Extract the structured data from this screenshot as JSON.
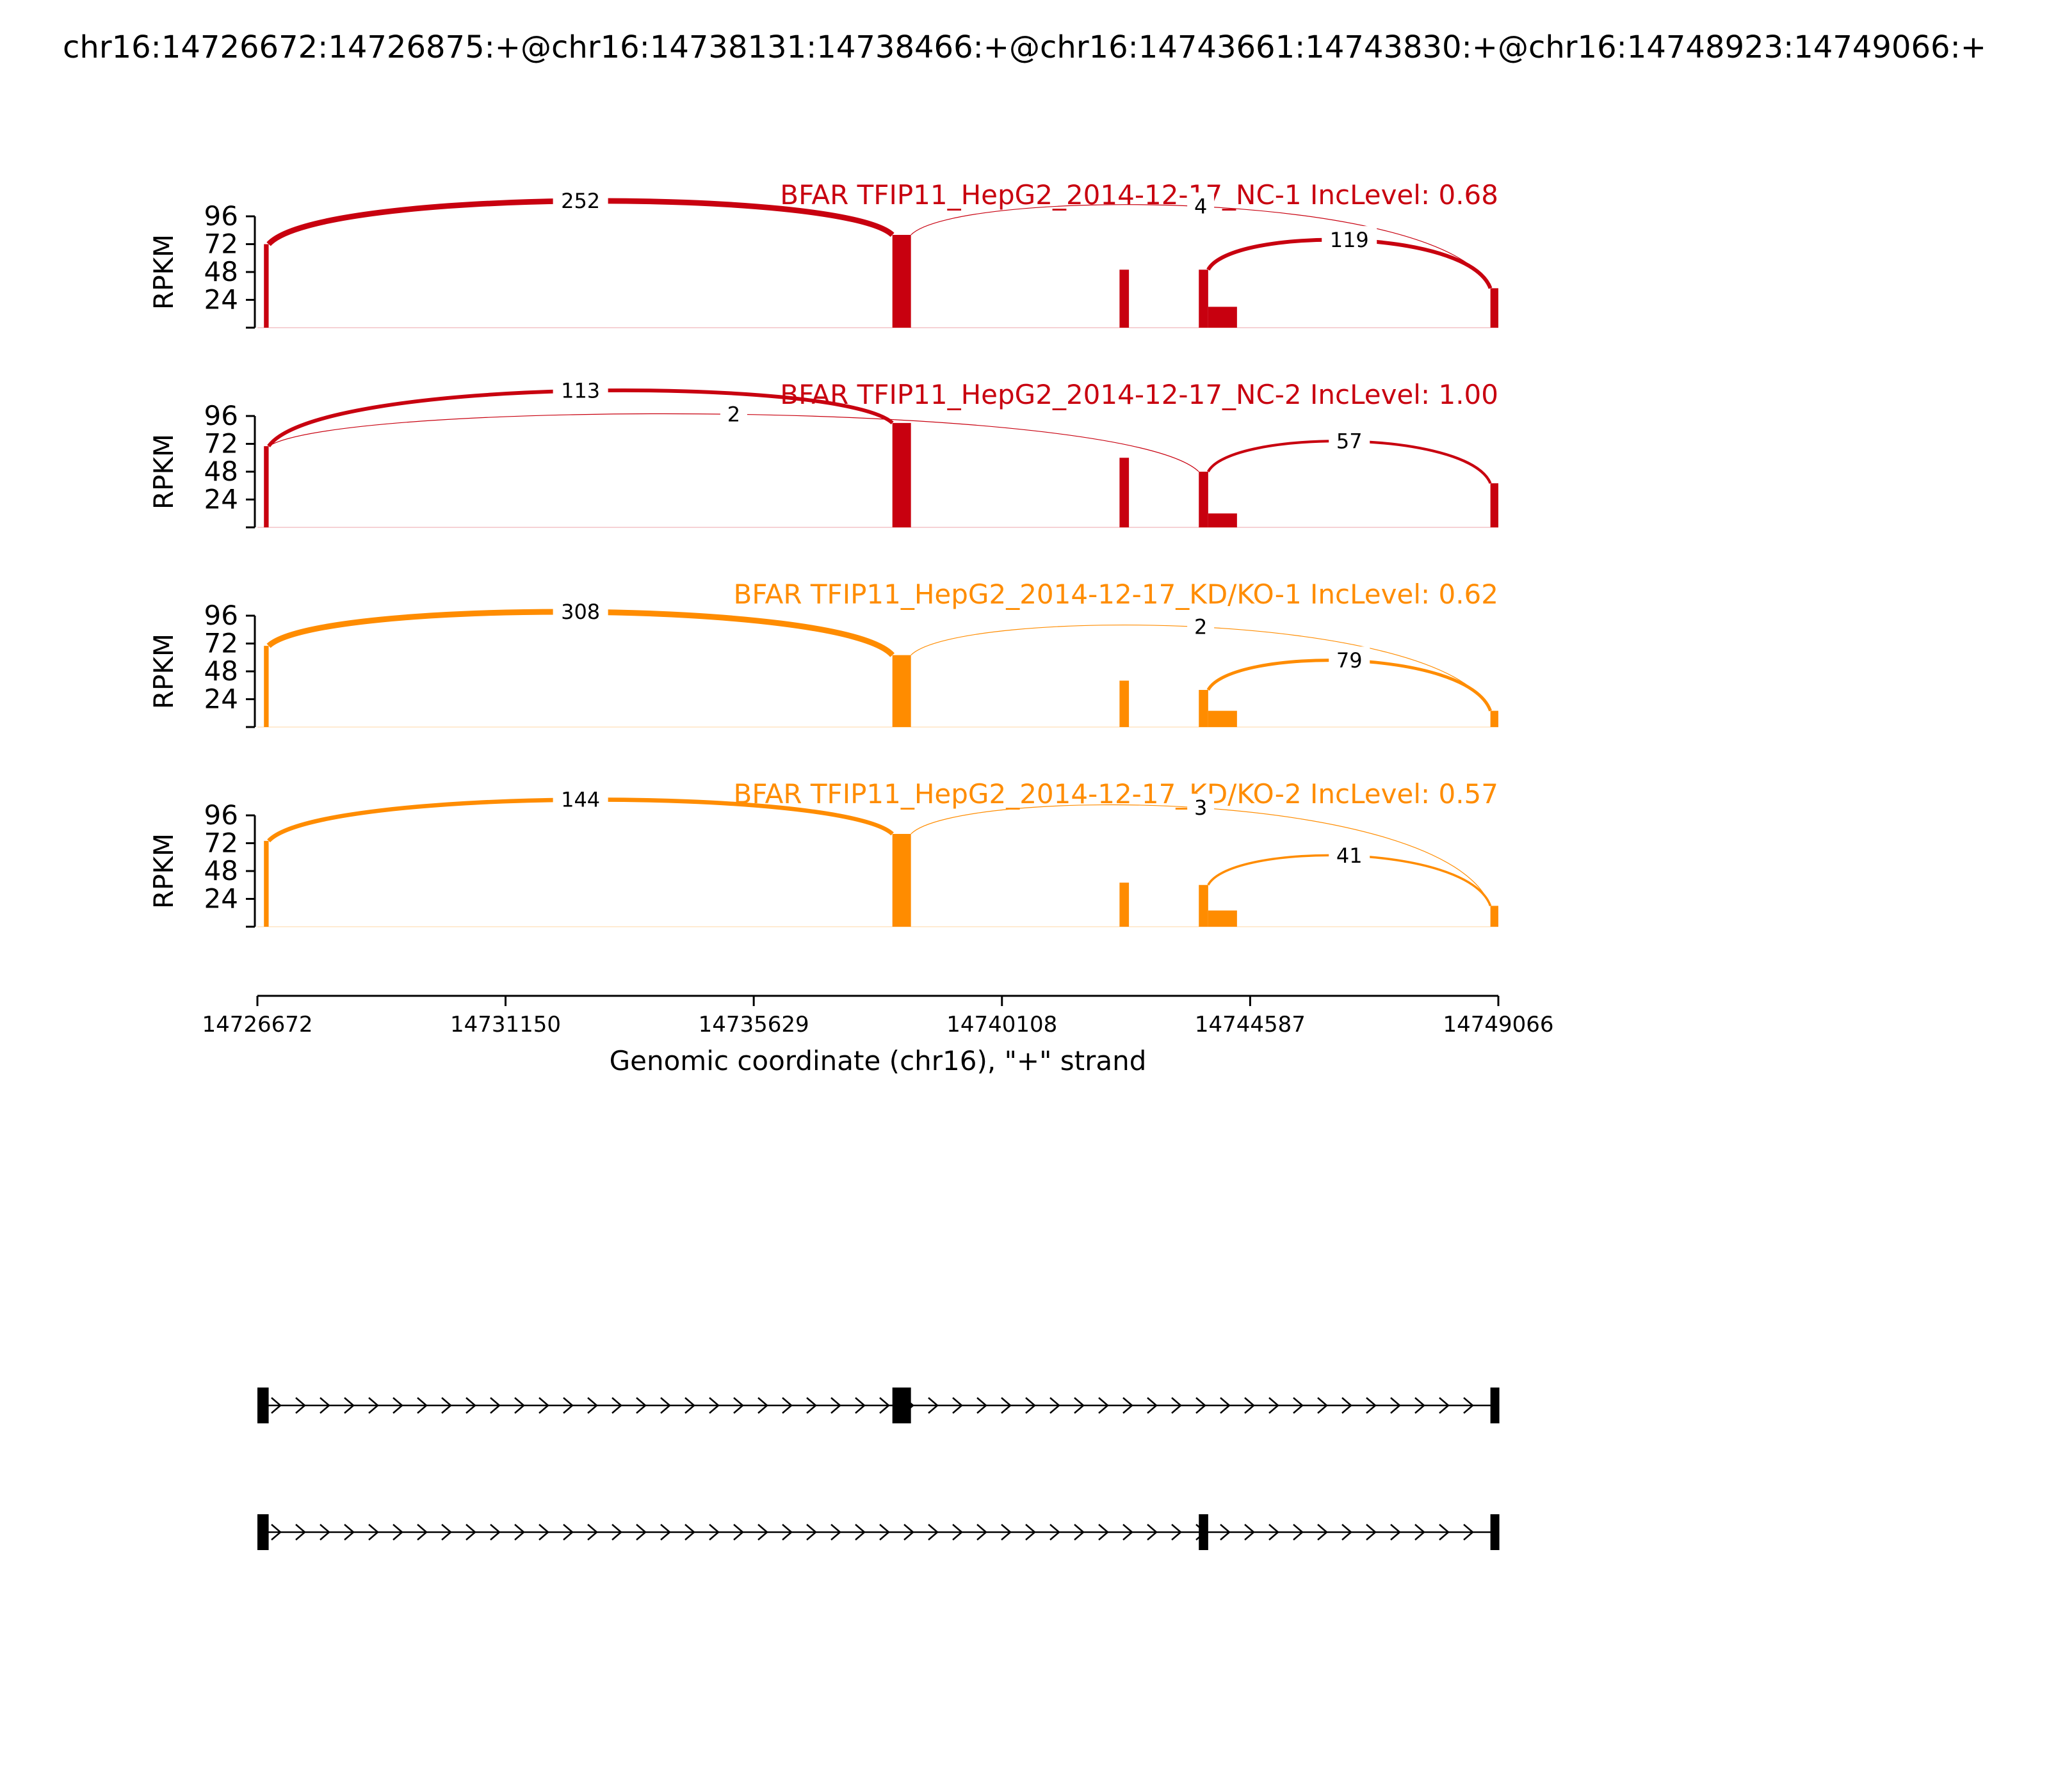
{
  "page": {
    "title": "chr16:14726672:14726875:+@chr16:14738131:14738466:+@chr16:14743661:14743830:+@chr16:14748923:14749066:+"
  },
  "chart_data": {
    "type": "sashimi",
    "xlabel": "Genomic coordinate (chr16), \"+\" strand",
    "ylabel": "RPKM",
    "xlim": [
      14726672,
      14749066
    ],
    "xticks": [
      "14726672",
      "14731150",
      "14735629",
      "14740108",
      "14744587",
      "14749066"
    ],
    "ylim": [
      0,
      96
    ],
    "yticks": [
      "24",
      "48",
      "72",
      "96"
    ],
    "exons": [
      {
        "start": 14726672,
        "end": 14726875
      },
      {
        "start": 14738131,
        "end": 14738466
      },
      {
        "start": 14743661,
        "end": 14743830
      },
      {
        "start": 14748923,
        "end": 14749066
      }
    ],
    "tracks": [
      {
        "title": "BFAR TFIP11_HepG2_2014-12-17_NC-1 IncLevel: 0.68",
        "color": "#c8000f",
        "coverage": [
          {
            "start": 14726790,
            "end": 14726875,
            "height": 72
          },
          {
            "start": 14738131,
            "end": 14738466,
            "height": 80
          },
          {
            "start": 14742230,
            "end": 14742400,
            "height": 50
          },
          {
            "start": 14743661,
            "end": 14743830,
            "height": 50
          },
          {
            "start": 14743830,
            "end": 14744350,
            "height": 18
          },
          {
            "start": 14748923,
            "end": 14749066,
            "height": 34
          }
        ],
        "junctions": [
          {
            "from": 14726875,
            "to": 14738131,
            "count": "252",
            "above": true
          },
          {
            "from": 14738466,
            "to": 14748923,
            "count": "4",
            "above": true
          },
          {
            "from": 14743830,
            "to": 14748923,
            "count": "119",
            "above": true
          }
        ]
      },
      {
        "title": "BFAR TFIP11_HepG2_2014-12-17_NC-2 IncLevel: 1.00",
        "color": "#c8000f",
        "coverage": [
          {
            "start": 14726790,
            "end": 14726875,
            "height": 70
          },
          {
            "start": 14738131,
            "end": 14738466,
            "height": 90
          },
          {
            "start": 14742230,
            "end": 14742400,
            "height": 60
          },
          {
            "start": 14743661,
            "end": 14743830,
            "height": 48
          },
          {
            "start": 14743830,
            "end": 14744350,
            "height": 12
          },
          {
            "start": 14748923,
            "end": 14749066,
            "height": 38
          }
        ],
        "junctions": [
          {
            "from": 14726875,
            "to": 14738131,
            "count": "113",
            "above": true
          },
          {
            "from": 14726875,
            "to": 14743661,
            "count": "2",
            "above": true
          },
          {
            "from": 14743830,
            "to": 14748923,
            "count": "57",
            "above": true
          }
        ]
      },
      {
        "title": "BFAR TFIP11_HepG2_2014-12-17_KD/KO-1 IncLevel: 0.62",
        "color": "#ff8c00",
        "coverage": [
          {
            "start": 14726790,
            "end": 14726875,
            "height": 70
          },
          {
            "start": 14738131,
            "end": 14738466,
            "height": 62
          },
          {
            "start": 14742230,
            "end": 14742400,
            "height": 40
          },
          {
            "start": 14743661,
            "end": 14743830,
            "height": 32
          },
          {
            "start": 14743830,
            "end": 14744350,
            "height": 14
          },
          {
            "start": 14748923,
            "end": 14749066,
            "height": 14
          }
        ],
        "junctions": [
          {
            "from": 14726875,
            "to": 14738131,
            "count": "308",
            "above": true
          },
          {
            "from": 14738466,
            "to": 14748923,
            "count": "2",
            "above": true
          },
          {
            "from": 14743830,
            "to": 14748923,
            "count": "79",
            "above": true
          }
        ]
      },
      {
        "title": "BFAR TFIP11_HepG2_2014-12-17_KD/KO-2 IncLevel: 0.57",
        "color": "#ff8c00",
        "coverage": [
          {
            "start": 14726790,
            "end": 14726875,
            "height": 74
          },
          {
            "start": 14738131,
            "end": 14738466,
            "height": 80
          },
          {
            "start": 14742230,
            "end": 14742400,
            "height": 38
          },
          {
            "start": 14743661,
            "end": 14743830,
            "height": 36
          },
          {
            "start": 14743830,
            "end": 14744350,
            "height": 14
          },
          {
            "start": 14748923,
            "end": 14749066,
            "height": 18
          }
        ],
        "junctions": [
          {
            "from": 14726875,
            "to": 14738131,
            "count": "144",
            "above": true
          },
          {
            "from": 14738466,
            "to": 14748923,
            "count": "3",
            "above": true
          },
          {
            "from": 14743830,
            "to": 14748923,
            "count": "41",
            "above": true
          }
        ]
      }
    ],
    "isoforms": [
      {
        "exons": [
          [
            14726672,
            14726875
          ],
          [
            14738131,
            14738466
          ],
          [
            14748923,
            14749066
          ]
        ]
      },
      {
        "exons": [
          [
            14726672,
            14726875
          ],
          [
            14743661,
            14743830
          ],
          [
            14748923,
            14749066
          ]
        ]
      }
    ]
  }
}
